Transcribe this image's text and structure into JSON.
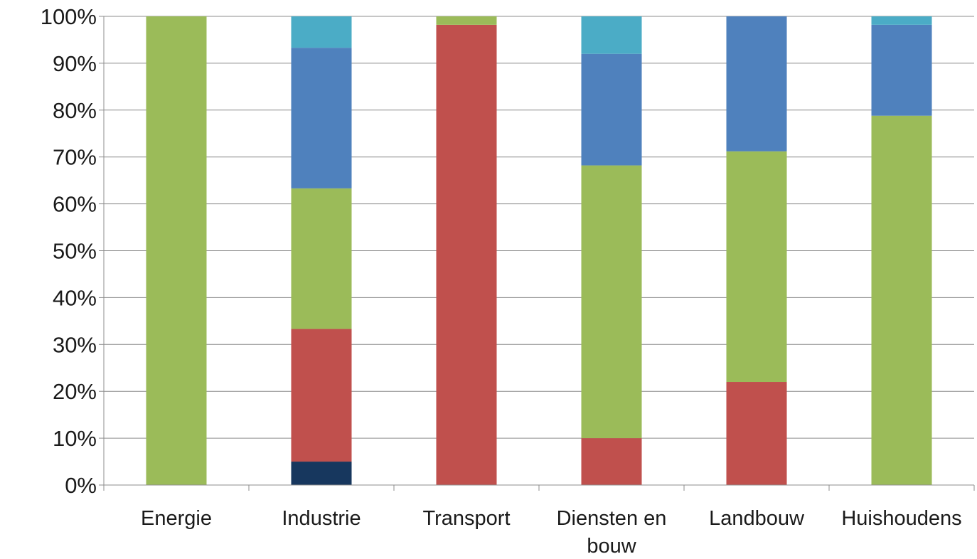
{
  "chart_data": {
    "type": "bar",
    "stacked": true,
    "title": "",
    "xlabel": "",
    "ylabel": "",
    "ylim": [
      0,
      100
    ],
    "y_ticks": [
      "0%",
      "10%",
      "20%",
      "30%",
      "40%",
      "50%",
      "60%",
      "70%",
      "80%",
      "90%",
      "100%"
    ],
    "grid": true,
    "legend": "none",
    "categories": [
      [
        "Energie"
      ],
      [
        "Industrie"
      ],
      [
        "Transport"
      ],
      [
        "Diensten en",
        "bouw"
      ],
      [
        "Landbouw"
      ],
      [
        "Huishoudens"
      ]
    ],
    "series": [
      {
        "color": "#17375e",
        "values": [
          0,
          5,
          0,
          0,
          0,
          0
        ]
      },
      {
        "color": "#c0504d",
        "values": [
          0,
          28.3,
          98.2,
          10,
          22,
          0
        ]
      },
      {
        "color": "#9bbb59",
        "values": [
          100,
          30,
          1.8,
          58.2,
          49.2,
          78.8
        ]
      },
      {
        "color": "#4f81bd",
        "values": [
          0,
          30,
          0,
          23.8,
          28.8,
          19.4
        ]
      },
      {
        "color": "#4bacc6",
        "values": [
          0,
          6.7,
          0,
          8,
          0,
          1.8
        ]
      }
    ]
  }
}
